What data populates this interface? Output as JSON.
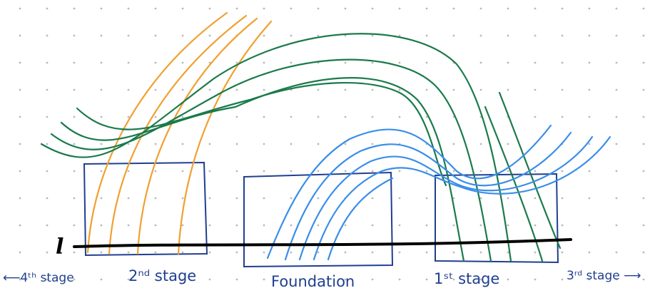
{
  "labels": {
    "l": "l",
    "fourth_stage": "⟵4ᵗʰ stage",
    "second_stage": "2ⁿᵈ stage",
    "foundation": "Foundation",
    "first_stage": "1ˢᵗ stage",
    "third_stage": "3ʳᵈ stage ⟶"
  },
  "colors": {
    "grid_dot": "#b9b9b9",
    "baseline": "#000000",
    "box": "#1f3f8f",
    "orange": "#f0a030",
    "green": "#1a7a4a",
    "blue": "#3a8ee8",
    "text": "#1f3f8f"
  }
}
